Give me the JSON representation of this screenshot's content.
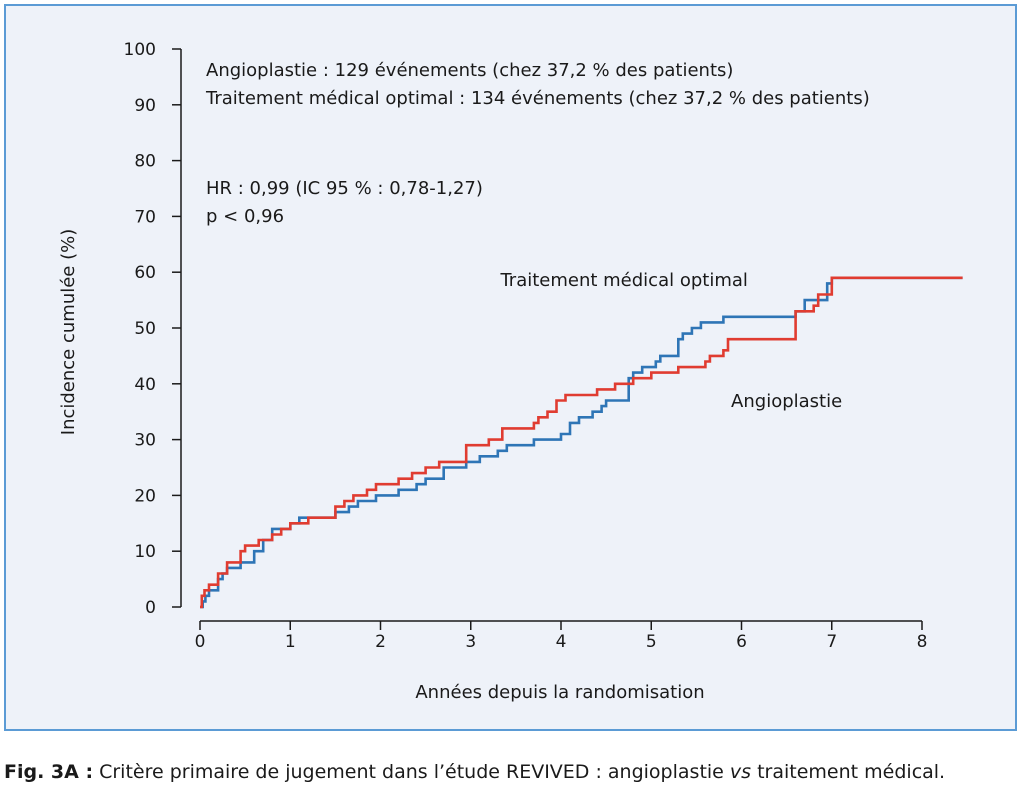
{
  "chart_data": {
    "type": "line",
    "step": true,
    "xlabel": "Années depuis la randomisation",
    "ylabel": "Incidence cumulée (%)",
    "xlim": [
      0,
      8
    ],
    "ylim": [
      0,
      100
    ],
    "xticks": [
      "0",
      "1",
      "2",
      "3",
      "4",
      "5",
      "6",
      "7",
      "8"
    ],
    "yticks": [
      "0",
      "10",
      "20",
      "30",
      "40",
      "50",
      "60",
      "70",
      "80",
      "90",
      "100"
    ],
    "grid": false,
    "annotations": {
      "line1": "Angioplastie : 129 événements (chez 37,2 % des patients)",
      "line2": "Traitement médical optimal : 134 événements (chez 37,2 % des patients)",
      "hr": "HR : 0,99 (IC 95 % : 0,78-1,27)",
      "p": "p < 0,96"
    },
    "series": [
      {
        "name": "Traitement médical optimal",
        "color": "#2e75b6",
        "points": [
          [
            0,
            0
          ],
          [
            0.03,
            1
          ],
          [
            0.06,
            2
          ],
          [
            0.1,
            3
          ],
          [
            0.2,
            5
          ],
          [
            0.25,
            6
          ],
          [
            0.3,
            7
          ],
          [
            0.45,
            8
          ],
          [
            0.6,
            10
          ],
          [
            0.7,
            12
          ],
          [
            0.8,
            14
          ],
          [
            1.0,
            15
          ],
          [
            1.1,
            16
          ],
          [
            1.5,
            17
          ],
          [
            1.65,
            18
          ],
          [
            1.75,
            19
          ],
          [
            1.95,
            20
          ],
          [
            2.2,
            21
          ],
          [
            2.4,
            22
          ],
          [
            2.5,
            23
          ],
          [
            2.7,
            25
          ],
          [
            2.95,
            26
          ],
          [
            3.1,
            27
          ],
          [
            3.3,
            28
          ],
          [
            3.4,
            29
          ],
          [
            3.7,
            30
          ],
          [
            4.0,
            31
          ],
          [
            4.1,
            33
          ],
          [
            4.2,
            34
          ],
          [
            4.35,
            35
          ],
          [
            4.45,
            36
          ],
          [
            4.5,
            37
          ],
          [
            4.75,
            41
          ],
          [
            4.8,
            42
          ],
          [
            4.9,
            43
          ],
          [
            5.05,
            44
          ],
          [
            5.1,
            45
          ],
          [
            5.3,
            48
          ],
          [
            5.35,
            49
          ],
          [
            5.45,
            50
          ],
          [
            5.55,
            51
          ],
          [
            5.8,
            52
          ],
          [
            6.6,
            53
          ],
          [
            6.7,
            55
          ],
          [
            6.95,
            58
          ],
          [
            7.0,
            59
          ],
          [
            8.45,
            59
          ]
        ]
      },
      {
        "name": "Angioplastie",
        "color": "#e03c31",
        "points": [
          [
            0,
            0
          ],
          [
            0.02,
            2
          ],
          [
            0.05,
            3
          ],
          [
            0.1,
            4
          ],
          [
            0.2,
            6
          ],
          [
            0.3,
            8
          ],
          [
            0.45,
            10
          ],
          [
            0.5,
            11
          ],
          [
            0.65,
            12
          ],
          [
            0.8,
            13
          ],
          [
            0.9,
            14
          ],
          [
            1.0,
            15
          ],
          [
            1.2,
            16
          ],
          [
            1.5,
            18
          ],
          [
            1.6,
            19
          ],
          [
            1.7,
            20
          ],
          [
            1.85,
            21
          ],
          [
            1.95,
            22
          ],
          [
            2.2,
            23
          ],
          [
            2.35,
            24
          ],
          [
            2.5,
            25
          ],
          [
            2.65,
            26
          ],
          [
            2.95,
            29
          ],
          [
            3.2,
            30
          ],
          [
            3.35,
            32
          ],
          [
            3.7,
            33
          ],
          [
            3.75,
            34
          ],
          [
            3.85,
            35
          ],
          [
            3.95,
            37
          ],
          [
            4.05,
            38
          ],
          [
            4.4,
            39
          ],
          [
            4.6,
            40
          ],
          [
            4.8,
            41
          ],
          [
            5.0,
            42
          ],
          [
            5.3,
            43
          ],
          [
            5.6,
            44
          ],
          [
            5.65,
            45
          ],
          [
            5.8,
            46
          ],
          [
            5.85,
            48
          ],
          [
            6.6,
            53
          ],
          [
            6.8,
            54
          ],
          [
            6.85,
            56
          ],
          [
            7.0,
            59
          ],
          [
            8.45,
            59
          ]
        ]
      }
    ],
    "series_labels": [
      {
        "text": "Traitement médical optimal",
        "anchor_x": 4.7,
        "anchor_y": 57.5
      },
      {
        "text": "Angioplastie",
        "anchor_x": 6.5,
        "anchor_y": 35.8
      }
    ]
  },
  "caption": {
    "lead": "Fig. 3A :",
    "text_before": " Critère primaire de jugement dans l’étude REVIVED : angioplastie ",
    "italic": "vs",
    "text_after": " traitement médical."
  }
}
